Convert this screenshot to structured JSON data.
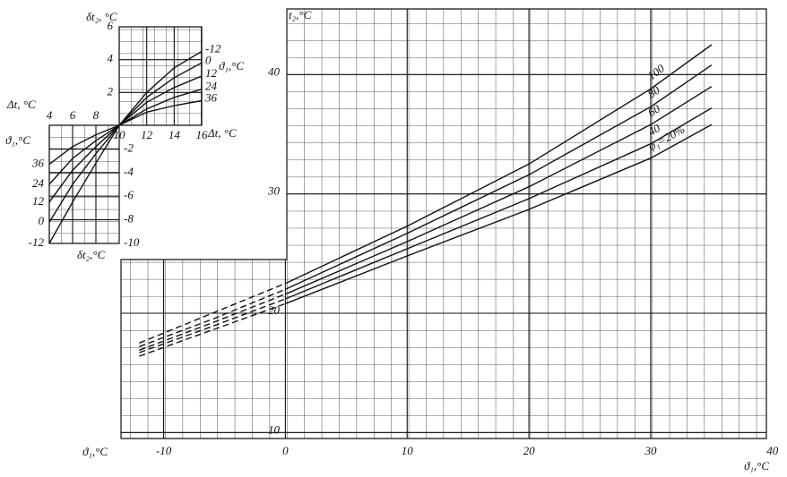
{
  "chart_data": [
    {
      "type": "line",
      "x_label": "ϑ₁,°C",
      "y_label": "t₂,°C",
      "color": "#111111",
      "xlim": [
        -13.5,
        39.5
      ],
      "ylim": [
        9.5,
        45.5
      ],
      "xticks": [
        -10,
        0,
        10,
        20,
        30,
        40
      ],
      "yticks": [
        10,
        20,
        30,
        40
      ],
      "x": [
        -12,
        -6,
        0,
        10,
        20,
        30,
        35
      ],
      "series": [
        {
          "name": "100",
          "values": [
            17.5,
            20,
            22.5,
            27.3,
            32.5,
            38.8,
            42.5
          ]
        },
        {
          "name": "80",
          "values": [
            17.2,
            19.5,
            22,
            26.7,
            31.6,
            37.3,
            40.8
          ]
        },
        {
          "name": "60",
          "values": [
            16.9,
            19.2,
            21.6,
            26,
            30.6,
            35.8,
            39
          ]
        },
        {
          "name": "40",
          "values": [
            16.7,
            18.9,
            21.2,
            25.4,
            29.6,
            34.2,
            37.2
          ]
        },
        {
          "name": "φ₁=20%",
          "values": [
            16.4,
            18.6,
            20.8,
            24.8,
            28.7,
            33,
            35.8
          ]
        }
      ]
    },
    {
      "type": "line",
      "x_label": "Δt, °C",
      "y_label": "δt₂, °C",
      "series_label": "ϑ₁,°C",
      "color": "#111111",
      "xlim": [
        10,
        16
      ],
      "ylim": [
        0,
        6
      ],
      "xticks": [
        10,
        12,
        14,
        16
      ],
      "yticks": [
        2,
        4,
        6
      ],
      "x": [
        10,
        12,
        14,
        16
      ],
      "series": [
        {
          "name": "-12",
          "values": [
            0,
            2,
            3.5,
            4.5
          ]
        },
        {
          "name": "0",
          "values": [
            0,
            1.7,
            2.9,
            3.8
          ]
        },
        {
          "name": "12",
          "values": [
            0,
            1.4,
            2.3,
            3
          ]
        },
        {
          "name": "24",
          "values": [
            0,
            1,
            1.7,
            2.2
          ]
        },
        {
          "name": "36",
          "values": [
            0,
            0.8,
            1.2,
            1.5
          ]
        }
      ]
    },
    {
      "type": "line",
      "x_label": "Δt, °C",
      "y_label": "δt₂,°C",
      "series_label": "ϑ₁,°C",
      "color": "#111111",
      "xlim": [
        4,
        10
      ],
      "ylim": [
        -10,
        0
      ],
      "xticks": [
        4,
        6,
        8
      ],
      "yticks": [
        -2,
        -4,
        -6,
        -8,
        -10
      ],
      "x": [
        4,
        6,
        8,
        10
      ],
      "series": [
        {
          "name": "36",
          "values": [
            -3.3,
            -1.8,
            -0.8,
            0
          ]
        },
        {
          "name": "24",
          "values": [
            -5,
            -2.8,
            -1.3,
            0
          ]
        },
        {
          "name": "12",
          "values": [
            -6.5,
            -3.8,
            -1.8,
            0
          ]
        },
        {
          "name": "0",
          "values": [
            -8.2,
            -5,
            -2.4,
            0
          ]
        },
        {
          "name": "-12",
          "values": [
            -10,
            -6.5,
            -3.2,
            0
          ]
        }
      ]
    }
  ]
}
